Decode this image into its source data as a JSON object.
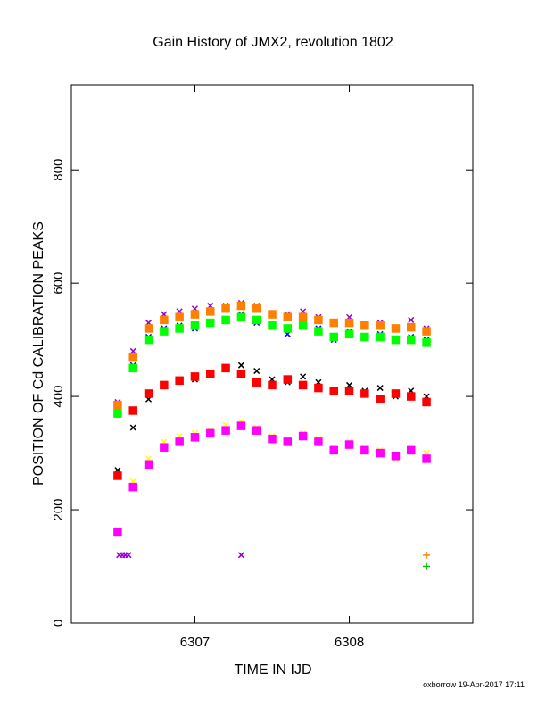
{
  "chart_data": {
    "type": "scatter",
    "title": "Gain History of JMX2, revolution 1802",
    "xlabel": "TIME IN IJD",
    "ylabel": "POSITION OF Cd CALIBRATION PEAKS",
    "footer": "oxborrow 19-Apr-2017 17:11",
    "xlim": [
      6306.2,
      6308.8
    ],
    "xticks": [
      6307,
      6308
    ],
    "ylim": [
      0,
      950
    ],
    "yticks": [
      0,
      200,
      400,
      600,
      800
    ],
    "x": [
      6306.5,
      6306.6,
      6306.7,
      6306.8,
      6306.9,
      6307.0,
      6307.1,
      6307.2,
      6307.3,
      6307.4,
      6307.5,
      6307.6,
      6307.7,
      6307.8,
      6307.9,
      6308.0,
      6308.1,
      6308.2,
      6308.3,
      6308.4,
      6308.5
    ],
    "series": [
      {
        "color": "#000000",
        "marker": "x",
        "values": [
          270,
          345,
          395,
          420,
          430,
          430,
          440,
          450,
          455,
          445,
          430,
          425,
          435,
          425,
          410,
          420,
          410,
          415,
          400,
          410,
          400
        ]
      },
      {
        "color": "#0000ff",
        "marker": "x",
        "values": [
          375,
          455,
          505,
          520,
          525,
          520,
          530,
          535,
          545,
          530,
          525,
          510,
          525,
          520,
          500,
          515,
          505,
          510,
          500,
          505,
          500
        ]
      },
      {
        "color": "#9400d3",
        "marker": "x",
        "values": [
          390,
          480,
          530,
          545,
          550,
          555,
          560,
          560,
          565,
          560,
          545,
          545,
          550,
          540,
          530,
          540,
          525,
          530,
          520,
          535,
          520
        ]
      },
      {
        "color": "#ffff00",
        "marker": "x",
        "values": [
          165,
          250,
          290,
          320,
          330,
          335,
          340,
          350,
          355,
          345,
          330,
          320,
          335,
          325,
          310,
          320,
          310,
          305,
          290,
          310,
          300
        ]
      },
      {
        "color": "#ff7f00",
        "marker": "dot",
        "values": [
          385,
          470,
          520,
          535,
          540,
          545,
          550,
          555,
          560,
          555,
          545,
          540,
          540,
          535,
          530,
          530,
          525,
          525,
          520,
          522,
          515
        ]
      },
      {
        "color": "#00ff00",
        "marker": "dot",
        "values": [
          370,
          450,
          500,
          515,
          520,
          525,
          530,
          535,
          540,
          535,
          525,
          520,
          525,
          515,
          505,
          510,
          505,
          505,
          500,
          500,
          495
        ]
      },
      {
        "color": "#ff0000",
        "marker": "dot",
        "values": [
          260,
          375,
          405,
          420,
          428,
          435,
          440,
          450,
          440,
          425,
          420,
          430,
          420,
          415,
          410,
          410,
          405,
          395,
          405,
          400,
          390
        ]
      },
      {
        "color": "#ff00ff",
        "marker": "dot",
        "values": [
          160,
          240,
          280,
          310,
          320,
          328,
          335,
          340,
          348,
          340,
          325,
          320,
          330,
          320,
          305,
          315,
          305,
          300,
          295,
          305,
          290
        ]
      },
      {
        "color": "#9400d3",
        "marker": "x",
        "x": [
          6306.51,
          6306.53,
          6306.55,
          6306.57,
          6307.3
        ],
        "values": [
          120,
          120,
          120,
          120,
          120
        ]
      },
      {
        "color": "#ff7f00",
        "marker": "plus",
        "x": [
          6308.5
        ],
        "values": [
          120
        ]
      },
      {
        "color": "#00c000",
        "marker": "plus",
        "x": [
          6308.5
        ],
        "values": [
          100
        ]
      }
    ]
  }
}
